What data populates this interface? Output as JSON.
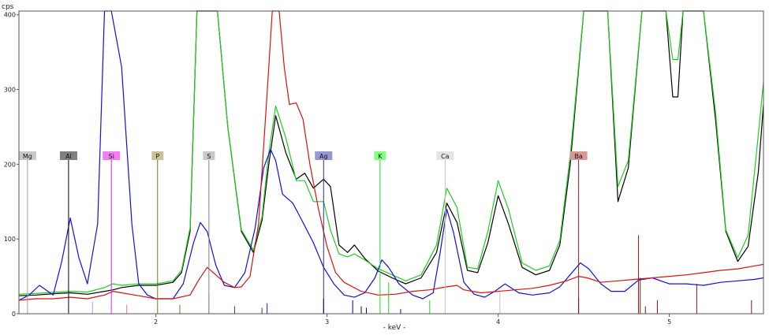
{
  "chart_data": {
    "type": "line",
    "ylabel": "cps",
    "xlabel": "- keV -",
    "xlim": [
      1.2,
      5.55
    ],
    "ylim": [
      0,
      405
    ],
    "x_ticks": [
      2,
      3,
      4,
      5
    ],
    "y_ticks": [
      0,
      100,
      200,
      300,
      400
    ],
    "grid": false,
    "colors": {
      "axis": "#555555",
      "text": "#222222",
      "black_series": "#000000",
      "green_series": "#22cc22",
      "blue_series": "#1010dd",
      "red_series": "#dd1010"
    },
    "series": [
      {
        "color": "#000000",
        "x": [
          1.2,
          1.3,
          1.42,
          1.5,
          1.6,
          1.7,
          1.75,
          1.8,
          1.9,
          2.0,
          2.1,
          2.15,
          2.2,
          2.24,
          2.3,
          2.36,
          2.42,
          2.5,
          2.57,
          2.62,
          2.66,
          2.7,
          2.76,
          2.82,
          2.87,
          2.92,
          2.98,
          3.02,
          3.07,
          3.12,
          3.16,
          3.22,
          3.3,
          3.38,
          3.46,
          3.55,
          3.64,
          3.7,
          3.76,
          3.82,
          3.88,
          3.94,
          4.0,
          4.06,
          4.14,
          4.22,
          4.3,
          4.36,
          4.42,
          4.5,
          4.58,
          4.64,
          4.7,
          4.76,
          4.84,
          4.92,
          4.98,
          5.02,
          5.05,
          5.08,
          5.13,
          5.2,
          5.27,
          5.33,
          5.4,
          5.46,
          5.52,
          5.55
        ],
        "y": [
          24,
          25,
          27,
          28,
          26,
          30,
          32,
          35,
          38,
          38,
          42,
          55,
          110,
          405,
          405,
          405,
          250,
          110,
          82,
          125,
          200,
          265,
          215,
          180,
          188,
          168,
          180,
          170,
          92,
          82,
          92,
          74,
          57,
          48,
          40,
          48,
          82,
          148,
          122,
          58,
          55,
          95,
          158,
          120,
          62,
          52,
          58,
          92,
          198,
          405,
          405,
          405,
          150,
          195,
          405,
          405,
          405,
          290,
          290,
          405,
          405,
          405,
          260,
          110,
          70,
          90,
          190,
          280
        ]
      },
      {
        "color": "#22cc22",
        "x": [
          1.2,
          1.3,
          1.42,
          1.5,
          1.6,
          1.7,
          1.75,
          1.8,
          1.9,
          2.0,
          2.1,
          2.15,
          2.2,
          2.24,
          2.3,
          2.36,
          2.42,
          2.5,
          2.57,
          2.62,
          2.66,
          2.7,
          2.76,
          2.82,
          2.87,
          2.92,
          2.98,
          3.02,
          3.07,
          3.12,
          3.16,
          3.22,
          3.3,
          3.38,
          3.46,
          3.55,
          3.64,
          3.7,
          3.76,
          3.82,
          3.88,
          3.94,
          4.0,
          4.06,
          4.14,
          4.22,
          4.3,
          4.36,
          4.42,
          4.5,
          4.58,
          4.64,
          4.7,
          4.76,
          4.84,
          4.92,
          4.98,
          5.02,
          5.05,
          5.08,
          5.13,
          5.2,
          5.27,
          5.33,
          5.4,
          5.46,
          5.52,
          5.55
        ],
        "y": [
          26,
          27,
          29,
          30,
          29,
          35,
          40,
          38,
          40,
          40,
          44,
          58,
          115,
          405,
          405,
          405,
          250,
          112,
          85,
          130,
          215,
          278,
          235,
          178,
          178,
          150,
          150,
          112,
          80,
          76,
          80,
          72,
          60,
          52,
          44,
          52,
          92,
          168,
          142,
          62,
          60,
          110,
          178,
          140,
          68,
          58,
          64,
          98,
          210,
          405,
          405,
          405,
          170,
          205,
          405,
          405,
          405,
          340,
          340,
          405,
          405,
          405,
          270,
          112,
          75,
          105,
          240,
          310
        ]
      },
      {
        "color": "#1010dd",
        "x": [
          1.2,
          1.26,
          1.32,
          1.4,
          1.45,
          1.5,
          1.55,
          1.6,
          1.66,
          1.7,
          1.74,
          1.8,
          1.86,
          1.9,
          1.95,
          2.0,
          2.1,
          2.16,
          2.22,
          2.26,
          2.3,
          2.35,
          2.4,
          2.46,
          2.52,
          2.58,
          2.63,
          2.67,
          2.7,
          2.74,
          2.8,
          2.86,
          2.92,
          2.98,
          3.04,
          3.1,
          3.16,
          3.22,
          3.28,
          3.32,
          3.36,
          3.42,
          3.5,
          3.56,
          3.62,
          3.66,
          3.7,
          3.74,
          3.8,
          3.86,
          3.92,
          3.98,
          4.04,
          4.12,
          4.2,
          4.3,
          4.36,
          4.42,
          4.48,
          4.53,
          4.6,
          4.66,
          4.74,
          4.82,
          4.9,
          5.0,
          5.1,
          5.2,
          5.3,
          5.4,
          5.5,
          5.55
        ],
        "y": [
          18,
          25,
          38,
          25,
          70,
          128,
          75,
          40,
          120,
          405,
          405,
          330,
          120,
          40,
          25,
          20,
          20,
          40,
          95,
          122,
          110,
          65,
          38,
          35,
          55,
          115,
          195,
          220,
          205,
          160,
          148,
          122,
          95,
          62,
          40,
          25,
          22,
          28,
          48,
          72,
          62,
          40,
          25,
          20,
          28,
          80,
          140,
          108,
          42,
          26,
          22,
          30,
          40,
          28,
          25,
          28,
          36,
          52,
          68,
          60,
          40,
          30,
          30,
          45,
          48,
          40,
          40,
          38,
          42,
          44,
          46,
          48
        ]
      },
      {
        "color": "#dd1010",
        "x": [
          1.2,
          1.3,
          1.4,
          1.5,
          1.6,
          1.7,
          1.75,
          1.8,
          1.9,
          2.0,
          2.1,
          2.2,
          2.25,
          2.3,
          2.35,
          2.4,
          2.46,
          2.5,
          2.55,
          2.6,
          2.64,
          2.66,
          2.68,
          2.7,
          2.72,
          2.75,
          2.78,
          2.82,
          2.86,
          2.9,
          2.95,
          3.0,
          3.05,
          3.1,
          3.2,
          3.3,
          3.4,
          3.5,
          3.6,
          3.7,
          3.76,
          3.8,
          3.9,
          4.0,
          4.1,
          4.2,
          4.3,
          4.4,
          4.47,
          4.52,
          4.6,
          4.7,
          4.8,
          4.9,
          5.0,
          5.1,
          5.2,
          5.3,
          5.4,
          5.5,
          5.55
        ],
        "y": [
          18,
          20,
          20,
          22,
          20,
          25,
          30,
          28,
          24,
          20,
          20,
          25,
          45,
          62,
          52,
          42,
          35,
          36,
          50,
          120,
          260,
          330,
          405,
          405,
          405,
          330,
          280,
          282,
          260,
          200,
          140,
          90,
          55,
          42,
          30,
          25,
          26,
          30,
          32,
          36,
          38,
          32,
          28,
          30,
          32,
          34,
          38,
          44,
          50,
          48,
          42,
          44,
          46,
          48,
          50,
          52,
          55,
          58,
          60,
          64,
          66
        ]
      }
    ],
    "element_markers": [
      {
        "label": "Mg",
        "x": 1.25,
        "color": "#a0a0a0",
        "label_bg": "#c8c8c8"
      },
      {
        "label": "Al",
        "x": 1.49,
        "color": "#000000",
        "label_bg": "#808080"
      },
      {
        "label": "Si",
        "x": 1.74,
        "color": "#e020e0",
        "label_bg": "#f080f0"
      },
      {
        "label": "P",
        "x": 2.01,
        "color": "#807020",
        "label_bg": "#c8c098"
      },
      {
        "label": "S",
        "x": 2.31,
        "color": "#808080",
        "label_bg": "#c8c8c8"
      },
      {
        "label": "Ag",
        "x": 2.98,
        "color": "#303090",
        "label_bg": "#9898d0"
      },
      {
        "label": "K",
        "x": 3.31,
        "color": "#20e020",
        "label_bg": "#80ff80"
      },
      {
        "label": "Ca",
        "x": 3.69,
        "color": "#c0c0c0",
        "label_bg": "#e4e4e4"
      },
      {
        "label": "Ba",
        "x": 4.47,
        "color": "#902020",
        "label_bg": "#d89898"
      }
    ],
    "bottom_lines": [
      {
        "x": 1.63,
        "y": 16,
        "color": "#a0a0ff"
      },
      {
        "x": 1.74,
        "y": 22,
        "color": "#e060e0"
      },
      {
        "x": 1.83,
        "y": 12,
        "color": "#d08080"
      },
      {
        "x": 2.14,
        "y": 12,
        "color": "#807020"
      },
      {
        "x": 2.31,
        "y": 25,
        "color": "#808080"
      },
      {
        "x": 2.46,
        "y": 10,
        "color": "#8b2020"
      },
      {
        "x": 2.62,
        "y": 8,
        "color": "#404040"
      },
      {
        "x": 2.65,
        "y": 14,
        "color": "#2020a0"
      },
      {
        "x": 2.98,
        "y": 20,
        "color": "#000080"
      },
      {
        "x": 3.15,
        "y": 18,
        "color": "#000080"
      },
      {
        "x": 3.2,
        "y": 10,
        "color": "#0000a0"
      },
      {
        "x": 3.23,
        "y": 8,
        "color": "#0000a0"
      },
      {
        "x": 3.36,
        "y": 42,
        "color": "#22cc22"
      },
      {
        "x": 3.43,
        "y": 6,
        "color": "#0000a0"
      },
      {
        "x": 3.6,
        "y": 18,
        "color": "#22cc22"
      },
      {
        "x": 4.01,
        "y": 30,
        "color": "#c0c0c0"
      },
      {
        "x": 4.47,
        "y": 22,
        "color": "#8b1010"
      },
      {
        "x": 4.82,
        "y": 105,
        "color": "#8b1010"
      },
      {
        "x": 4.83,
        "y": 48,
        "color": "#8b1010"
      },
      {
        "x": 4.86,
        "y": 10,
        "color": "#8b1010"
      },
      {
        "x": 4.93,
        "y": 18,
        "color": "#8b1010"
      },
      {
        "x": 5.16,
        "y": 40,
        "color": "#8b1010"
      },
      {
        "x": 5.48,
        "y": 18,
        "color": "#8b1010"
      }
    ]
  }
}
